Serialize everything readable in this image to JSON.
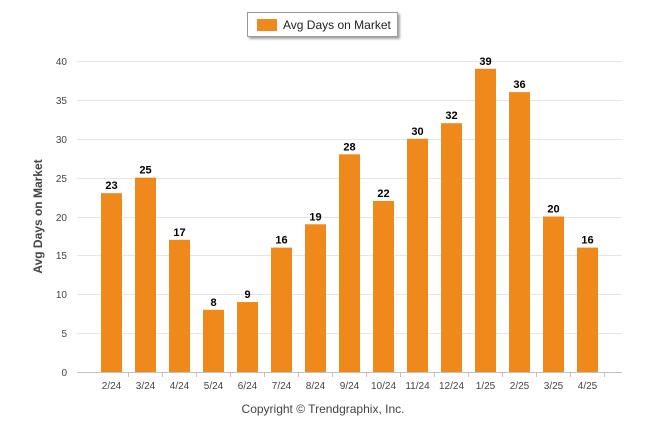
{
  "chart_data": {
    "type": "bar",
    "categories": [
      "2/24",
      "3/24",
      "4/24",
      "5/24",
      "6/24",
      "7/24",
      "8/24",
      "9/24",
      "10/24",
      "11/24",
      "12/24",
      "1/25",
      "2/25",
      "3/25",
      "4/25"
    ],
    "series": [
      {
        "name": "Avg Days on Market",
        "values": [
          23,
          25,
          17,
          8,
          9,
          16,
          19,
          28,
          22,
          30,
          32,
          39,
          36,
          20,
          16
        ]
      }
    ],
    "ylabel": "Avg Days on Market",
    "xlabel": "",
    "ylim": [
      0,
      40
    ],
    "yticks": [
      0,
      5,
      10,
      15,
      20,
      25,
      30,
      35,
      40
    ],
    "grid": true,
    "legend_position": "top-center",
    "data_labels": true
  },
  "colors": {
    "bar": "#F0891B",
    "grid": "#e6e6e6",
    "axis_text": "#444444",
    "label_text": "#000000"
  },
  "footer": {
    "copyright": "Copyright © Trendgraphix, Inc."
  }
}
